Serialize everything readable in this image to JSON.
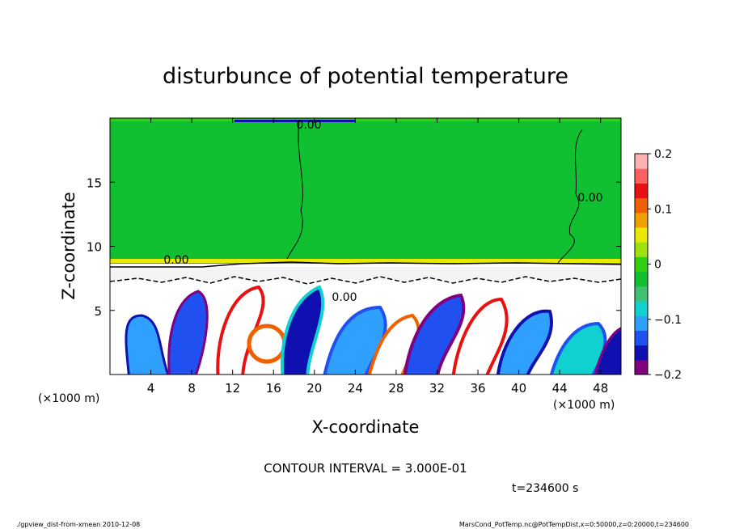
{
  "chart_data": {
    "type": "heatmap",
    "title": "disturbunce of potential temperature",
    "xlabel": "X-coordinate",
    "ylabel": "Z-coordinate",
    "x_unit": "(×1000 m)",
    "y_unit": "(×1000 m)",
    "x_ticks": [
      4,
      8,
      12,
      16,
      20,
      24,
      28,
      32,
      36,
      40,
      44,
      48
    ],
    "y_ticks": [
      5,
      10,
      15
    ],
    "xlim": [
      0,
      50
    ],
    "ylim": [
      0,
      20
    ],
    "colorbar": {
      "range": [
        -0.2,
        0.2
      ],
      "tick_values": [
        0.2,
        0.1,
        0,
        -0.1,
        -0.2
      ],
      "tick_labels": [
        "0.2",
        "0.1",
        "0",
        "−0.1",
        "−0.2"
      ],
      "colors": [
        "#800080",
        "#1010b0",
        "#2050f0",
        "#30a0ff",
        "#10d0d0",
        "#40c070",
        "#10c030",
        "#30d010",
        "#a0e010",
        "#e8e800",
        "#f0a000",
        "#f06000",
        "#e81010",
        "#ff6060",
        "#ffb0b0"
      ]
    },
    "contour_labels": [
      {
        "text": "0.00",
        "x": 19.5,
        "z": 19.4
      },
      {
        "text": "0.00",
        "x": 46.5,
        "z": 13.2
      },
      {
        "text": "0.00",
        "x": 6.5,
        "z": 8.8
      },
      {
        "text": "0.00",
        "x": 23.0,
        "z": 5.6
      }
    ],
    "contour_interval": "CONTOUR INTERVAL = 3.000E-01",
    "time": "t=234600 s"
  },
  "footer": {
    "left": "./gpview_dist-from-xmean  2010-12-08",
    "right": "MarsCond_PotTemp.nc@PotTempDist,x=0:50000,z=0:20000,t=234600"
  }
}
